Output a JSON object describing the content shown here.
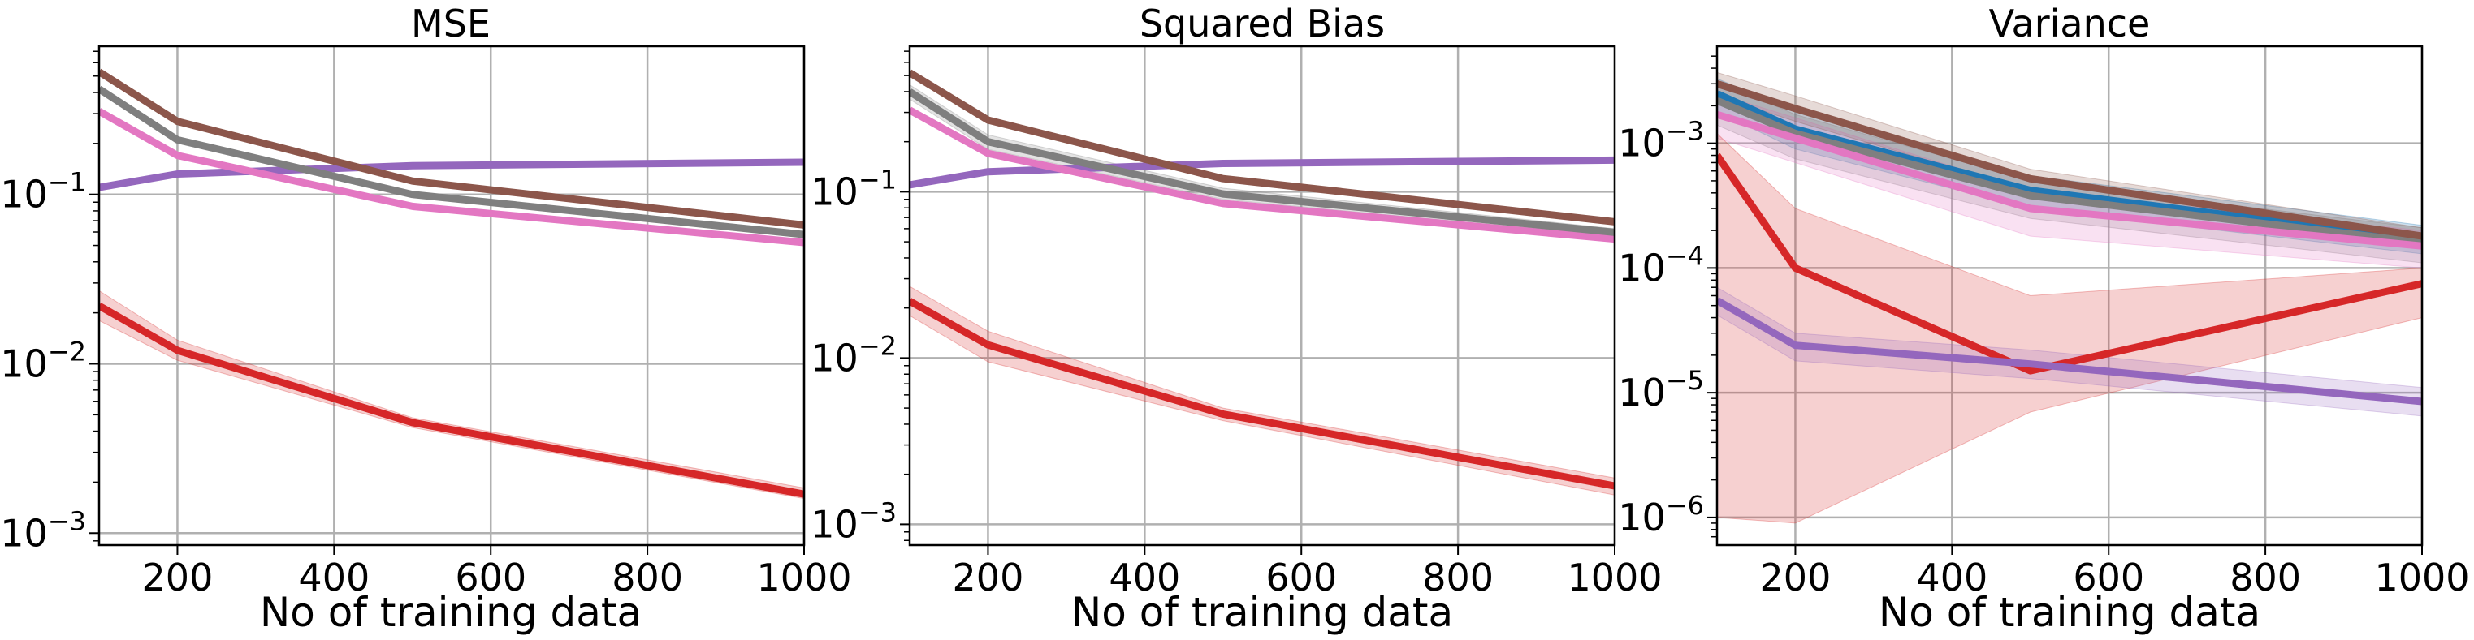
{
  "chart_data": [
    {
      "type": "line",
      "title": "MSE",
      "xlabel": "No of training data",
      "ylabel": "",
      "log_y": true,
      "xlim": [
        100,
        1000
      ],
      "ylim": [
        0.00085,
        0.75
      ],
      "x": [
        100,
        200,
        500,
        1000
      ],
      "x_ticks": [
        200,
        400,
        600,
        800,
        1000
      ],
      "y_ticks": [
        0.001,
        0.01,
        0.1
      ],
      "grid": true,
      "series": [
        {
          "color": "#9467bd",
          "values": [
            0.11,
            0.132,
            0.148,
            0.155
          ],
          "band_lower": [
            0.108,
            0.13,
            0.146,
            0.153
          ],
          "band_upper": [
            0.112,
            0.134,
            0.15,
            0.157
          ]
        },
        {
          "color": "#e377c2",
          "values": [
            0.31,
            0.17,
            0.085,
            0.052
          ],
          "band_lower": [
            0.3,
            0.165,
            0.083,
            0.051
          ],
          "band_upper": [
            0.32,
            0.175,
            0.087,
            0.053
          ]
        },
        {
          "color": "#7f7f7f",
          "values": [
            0.42,
            0.21,
            0.1,
            0.058
          ],
          "band_lower": [
            0.41,
            0.205,
            0.098,
            0.057
          ],
          "band_upper": [
            0.43,
            0.215,
            0.102,
            0.059
          ]
        },
        {
          "color": "#8c564b",
          "values": [
            0.53,
            0.27,
            0.12,
            0.066
          ],
          "band_lower": [
            0.52,
            0.265,
            0.118,
            0.065
          ],
          "band_upper": [
            0.54,
            0.275,
            0.122,
            0.067
          ]
        },
        {
          "color": "#d62728",
          "values": [
            0.022,
            0.012,
            0.0045,
            0.0017
          ],
          "band_lower": [
            0.018,
            0.0105,
            0.0042,
            0.0016
          ],
          "band_upper": [
            0.027,
            0.0138,
            0.0048,
            0.00185
          ]
        }
      ]
    },
    {
      "type": "line",
      "title": "Squared Bias",
      "xlabel": "No of training data",
      "ylabel": "",
      "log_y": true,
      "xlim": [
        100,
        1000
      ],
      "ylim": [
        0.00075,
        0.75
      ],
      "x": [
        100,
        200,
        500,
        1000
      ],
      "x_ticks": [
        200,
        400,
        600,
        800,
        1000
      ],
      "y_ticks": [
        0.001,
        0.01,
        0.1
      ],
      "grid": true,
      "series": [
        {
          "color": "#9467bd",
          "values": [
            0.11,
            0.132,
            0.148,
            0.155
          ],
          "band_lower": [
            0.108,
            0.13,
            0.146,
            0.153
          ],
          "band_upper": [
            0.112,
            0.134,
            0.15,
            0.157
          ]
        },
        {
          "color": "#e377c2",
          "values": [
            0.31,
            0.17,
            0.085,
            0.052
          ],
          "band_lower": [
            0.3,
            0.165,
            0.083,
            0.051
          ],
          "band_upper": [
            0.32,
            0.175,
            0.087,
            0.053
          ]
        },
        {
          "color": "#7f7f7f",
          "values": [
            0.4,
            0.2,
            0.097,
            0.057
          ],
          "band_lower": [
            0.36,
            0.18,
            0.09,
            0.054
          ],
          "band_upper": [
            0.44,
            0.22,
            0.105,
            0.06
          ]
        },
        {
          "color": "#8c564b",
          "values": [
            0.52,
            0.27,
            0.12,
            0.066
          ],
          "band_lower": [
            0.5,
            0.26,
            0.117,
            0.065
          ],
          "band_upper": [
            0.54,
            0.28,
            0.123,
            0.067
          ]
        },
        {
          "color": "#d62728",
          "values": [
            0.022,
            0.012,
            0.0046,
            0.0017
          ],
          "band_lower": [
            0.018,
            0.0095,
            0.0042,
            0.0015
          ],
          "band_upper": [
            0.027,
            0.0145,
            0.005,
            0.0019
          ]
        }
      ]
    },
    {
      "type": "line",
      "title": "Variance",
      "xlabel": "No of training data",
      "ylabel": "",
      "log_y": true,
      "xlim": [
        100,
        1000
      ],
      "ylim": [
        6e-07,
        0.006
      ],
      "x": [
        100,
        200,
        500,
        1000
      ],
      "x_ticks": [
        200,
        400,
        600,
        800,
        1000
      ],
      "y_ticks": [
        1e-06,
        1e-05,
        0.0001,
        0.001
      ],
      "grid": true,
      "series": [
        {
          "color": "#1f77b4",
          "values": [
            0.0025,
            0.0013,
            0.00042,
            0.00017
          ],
          "band_lower": [
            0.0018,
            0.0009,
            0.0003,
            0.00013
          ],
          "band_upper": [
            0.0033,
            0.0018,
            0.00055,
            0.00022
          ]
        },
        {
          "color": "#7f7f7f",
          "values": [
            0.0022,
            0.0012,
            0.00038,
            0.00016
          ],
          "band_lower": [
            0.0014,
            0.00075,
            0.00025,
            0.00011
          ],
          "band_upper": [
            0.0032,
            0.0017,
            0.0005,
            0.00021
          ]
        },
        {
          "color": "#e377c2",
          "values": [
            0.0017,
            0.0011,
            0.0003,
            0.00015
          ],
          "band_lower": [
            0.0011,
            0.0007,
            0.00018,
            0.0001
          ],
          "band_upper": [
            0.0025,
            0.0016,
            0.00042,
            0.0002
          ]
        },
        {
          "color": "#8c564b",
          "values": [
            0.003,
            0.0019,
            0.00052,
            0.00018
          ],
          "band_lower": [
            0.0024,
            0.0015,
            0.00042,
            0.00015
          ],
          "band_upper": [
            0.0037,
            0.0024,
            0.00062,
            0.00021
          ]
        },
        {
          "color": "#d62728",
          "values": [
            0.0008,
            0.0001,
            1.5e-05,
            7.5e-05
          ],
          "band_lower": [
            1e-06,
            9e-07,
            7e-06,
            4e-05
          ],
          "band_upper": [
            0.0012,
            0.0003,
            6e-05,
            0.0001
          ]
        },
        {
          "color": "#9467bd",
          "values": [
            5.5e-05,
            2.4e-05,
            1.7e-05,
            8.5e-06
          ],
          "band_lower": [
            4.2e-05,
            1.8e-05,
            1.3e-05,
            6.5e-06
          ],
          "band_upper": [
            7e-05,
            3e-05,
            2.2e-05,
            1.1e-05
          ]
        }
      ]
    }
  ]
}
